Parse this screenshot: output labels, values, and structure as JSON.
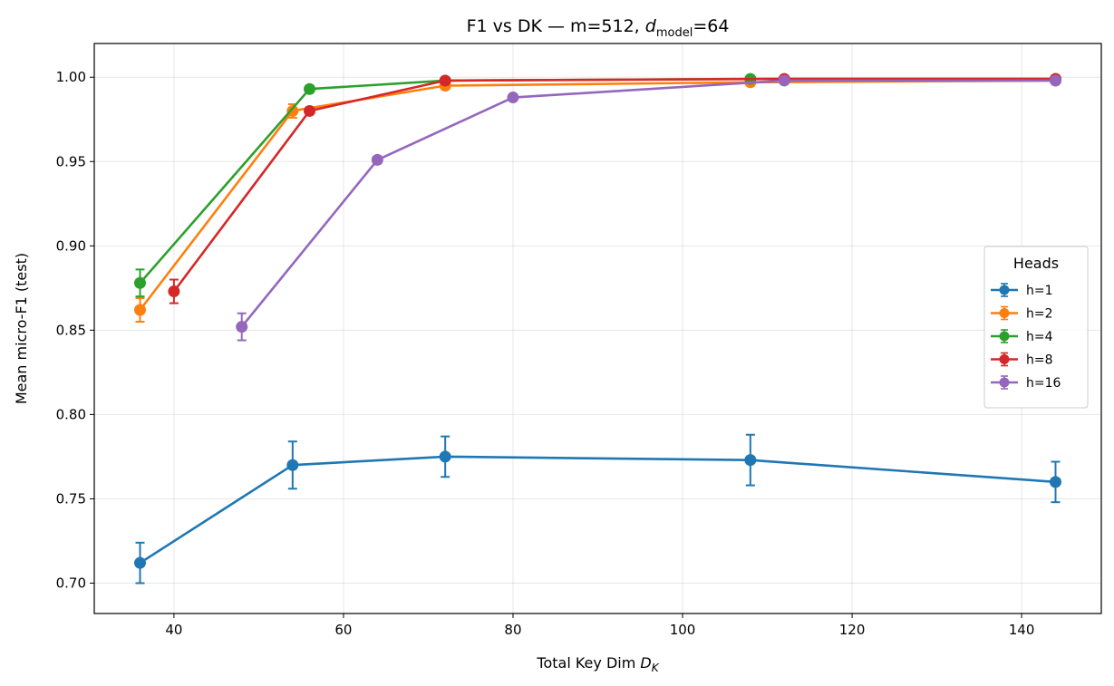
{
  "chart_data": {
    "type": "line",
    "title_main": "F1 vs DK — m=512, ",
    "title_var": "d",
    "title_sub": "model",
    "title_tail": "=64",
    "xlabel_main": "Total Key Dim ",
    "xlabel_var": "D",
    "xlabel_sub": "K",
    "ylabel": "Mean micro-F1 (test)",
    "xlim": [
      30.6,
      149.4
    ],
    "ylim": [
      0.682,
      1.02
    ],
    "xticks": [
      40,
      60,
      80,
      100,
      120,
      140
    ],
    "xtick_labels": [
      "40",
      "60",
      "80",
      "100",
      "120",
      "140"
    ],
    "yticks": [
      0.7,
      0.75,
      0.8,
      0.85,
      0.9,
      0.95,
      1.0
    ],
    "ytick_labels": [
      "0.70",
      "0.75",
      "0.80",
      "0.85",
      "0.90",
      "0.95",
      "1.00"
    ],
    "grid": true,
    "legend": {
      "title": "Heads",
      "position": "center-right"
    },
    "series": [
      {
        "name": "h=1",
        "color": "#1f77b4",
        "x": [
          36,
          54,
          72,
          108,
          144
        ],
        "y": [
          0.712,
          0.77,
          0.775,
          0.773,
          0.76
        ],
        "err": [
          0.012,
          0.014,
          0.012,
          0.015,
          0.012
        ]
      },
      {
        "name": "h=2",
        "color": "#ff7f0e",
        "x": [
          36,
          54,
          72,
          108,
          144
        ],
        "y": [
          0.862,
          0.98,
          0.995,
          0.997,
          0.998
        ],
        "err": [
          0.007,
          0.004,
          0.002,
          0.002,
          0.001
        ]
      },
      {
        "name": "h=4",
        "color": "#2ca02c",
        "x": [
          36,
          56,
          72,
          108,
          144
        ],
        "y": [
          0.878,
          0.993,
          0.998,
          0.999,
          0.999
        ],
        "err": [
          0.008,
          0.002,
          0.001,
          0.001,
          0.001
        ]
      },
      {
        "name": "h=8",
        "color": "#d62728",
        "x": [
          40,
          56,
          72,
          112,
          144
        ],
        "y": [
          0.873,
          0.98,
          0.998,
          0.999,
          0.999
        ],
        "err": [
          0.007,
          0.002,
          0.001,
          0.001,
          0.001
        ]
      },
      {
        "name": "h=16",
        "color": "#9467bd",
        "x": [
          48,
          64,
          80,
          112,
          144
        ],
        "y": [
          0.852,
          0.951,
          0.988,
          0.998,
          0.998
        ],
        "err": [
          0.008,
          0.002,
          0.001,
          0.001,
          0.001
        ]
      }
    ]
  }
}
